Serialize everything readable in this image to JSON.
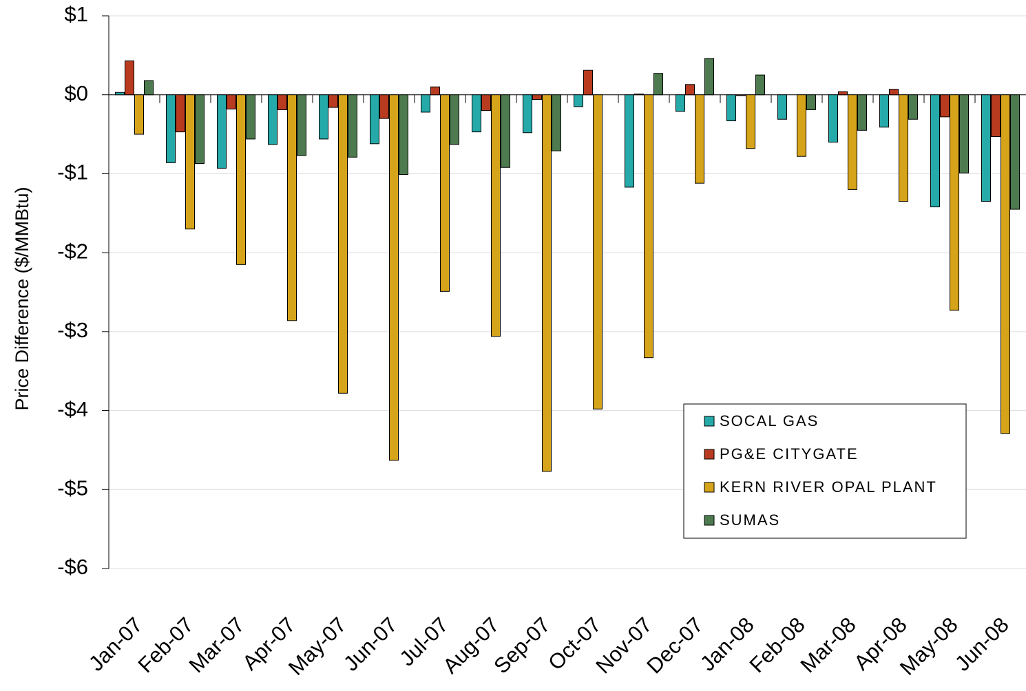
{
  "chart_data": {
    "type": "bar",
    "y_label": "Price Difference  ($/MMBtu)",
    "categories": [
      "Jan-07",
      "Feb-07",
      "Mar-07",
      "Apr-07",
      "May-07",
      "Jun-07",
      "Jul-07",
      "Aug-07",
      "Sep-07",
      "Oct-07",
      "Nov-07",
      "Dec-07",
      "Jan-08",
      "Feb-08",
      "Mar-08",
      "Apr-08",
      "May-08",
      "Jun-08"
    ],
    "series": [
      {
        "name": "SOCAL GAS",
        "color": "#26a9a9",
        "values": [
          0.03,
          -0.86,
          -0.93,
          -0.63,
          -0.56,
          -0.62,
          -0.22,
          -0.47,
          -0.48,
          -0.15,
          -1.17,
          -0.21,
          -0.33,
          -0.31,
          -0.6,
          -0.41,
          -1.42,
          -1.35
        ]
      },
      {
        "name": "PG&E CITYGATE",
        "color": "#b83b20",
        "values": [
          0.43,
          -0.47,
          -0.18,
          -0.19,
          -0.16,
          -0.3,
          0.1,
          -0.2,
          -0.06,
          0.31,
          0.01,
          0.13,
          -0.01,
          null,
          0.04,
          0.07,
          -0.28,
          -0.53
        ]
      },
      {
        "name": "KERN RIVER OPAL PLANT",
        "color": "#d6a41a",
        "values": [
          -0.5,
          -1.7,
          -2.15,
          -2.86,
          -3.78,
          -4.63,
          -2.49,
          -3.06,
          -4.77,
          -3.98,
          -3.33,
          -1.12,
          -0.68,
          -0.78,
          -1.2,
          -1.35,
          -2.73,
          -4.29
        ]
      },
      {
        "name": "SUMAS",
        "color": "#4d7b4f",
        "values": [
          0.18,
          -0.87,
          -0.56,
          -0.77,
          -0.79,
          -1.01,
          -0.63,
          -0.92,
          -0.71,
          null,
          0.27,
          0.46,
          0.25,
          -0.19,
          -0.45,
          -0.31,
          -0.99,
          -1.45
        ]
      }
    ],
    "ylim": [
      -6,
      1
    ],
    "yticks": [
      {
        "value": 1,
        "label": "$1"
      },
      {
        "value": 0,
        "label": "$0"
      },
      {
        "value": -1,
        "label": "-$1"
      },
      {
        "value": -2,
        "label": "-$2"
      },
      {
        "value": -3,
        "label": "-$3"
      },
      {
        "value": -4,
        "label": "-$4"
      },
      {
        "value": -5,
        "label": "-$5"
      },
      {
        "value": -6,
        "label": "-$6"
      }
    ],
    "grid": true,
    "legend_position": "lower right"
  }
}
